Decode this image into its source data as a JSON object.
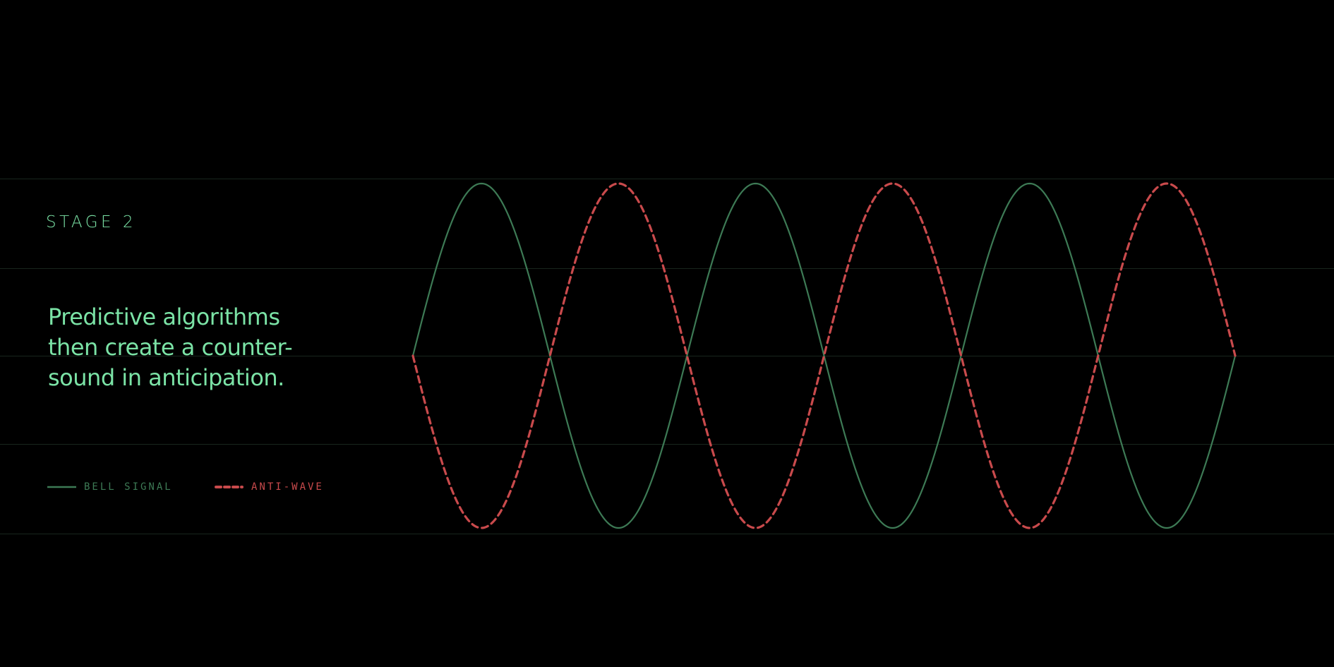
{
  "stage_label": "STAGE 2",
  "description": "Predictive algorithms then create a counter-sound in anticipation.",
  "legend": [
    {
      "label": "BELL SIGNAL",
      "style": "solid",
      "color": "#3d7a55"
    },
    {
      "label": "ANTI-WAVE",
      "style": "dashed",
      "color": "#c94a4c"
    }
  ],
  "colors": {
    "background": "#000000",
    "text": "#7be3a6",
    "grid": "#18261d"
  },
  "chart_data": {
    "type": "line",
    "cycles": 3,
    "series": [
      {
        "name": "BELL SIGNAL",
        "function": "sine",
        "amplitude": 1,
        "phase": 0
      },
      {
        "name": "ANTI-WAVE",
        "function": "sine",
        "amplitude": -1,
        "phase": 0
      }
    ],
    "ylim": [
      -1,
      1
    ],
    "grid": true
  }
}
